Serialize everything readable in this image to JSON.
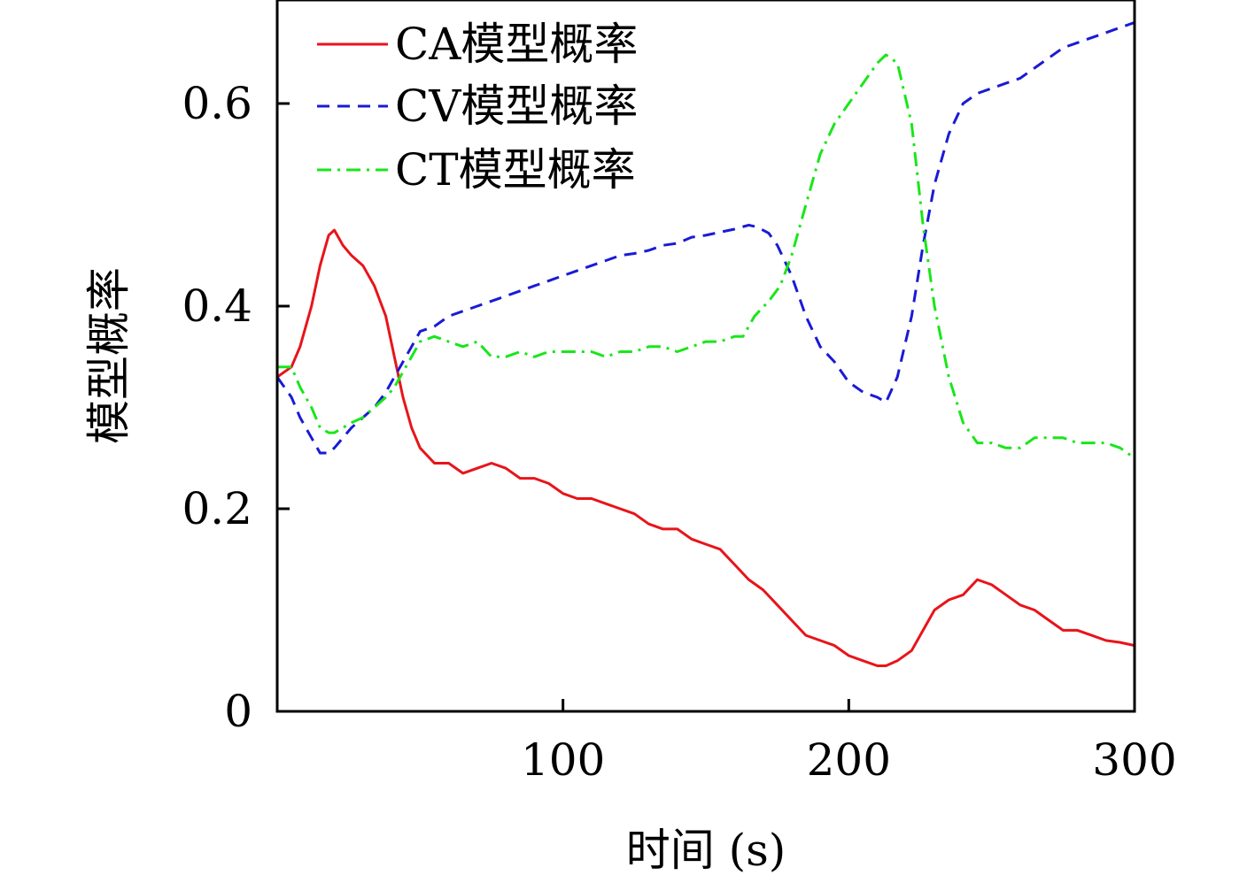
{
  "chart_data": {
    "type": "line",
    "title": "",
    "xlabel": "时间 (s)",
    "ylabel": "模型概率",
    "xlim": [
      0,
      300
    ],
    "ylim": [
      0,
      0.7
    ],
    "xticks": [
      100,
      200,
      300
    ],
    "xtick_labels": [
      "100",
      "200",
      "300"
    ],
    "yticks": [
      0,
      0.2,
      0.4,
      0.6
    ],
    "ytick_labels": [
      "0",
      "0.2",
      "0.4",
      "0.6"
    ],
    "grid": false,
    "legend_position": "top-left",
    "series": [
      {
        "name": "CA模型概率",
        "color": "#e8141a",
        "dash": "solid",
        "x": [
          0,
          5,
          8,
          12,
          15,
          18,
          20,
          23,
          26,
          30,
          34,
          38,
          41,
          44,
          47,
          50,
          55,
          60,
          65,
          70,
          75,
          80,
          85,
          90,
          95,
          100,
          105,
          110,
          115,
          120,
          125,
          130,
          135,
          140,
          145,
          150,
          155,
          160,
          165,
          170,
          175,
          180,
          185,
          190,
          195,
          200,
          205,
          210,
          213,
          217,
          222,
          226,
          230,
          235,
          240,
          245,
          250,
          255,
          260,
          265,
          270,
          275,
          280,
          285,
          290,
          295,
          300
        ],
        "y": [
          0.33,
          0.34,
          0.36,
          0.4,
          0.44,
          0.47,
          0.475,
          0.46,
          0.45,
          0.44,
          0.42,
          0.39,
          0.35,
          0.31,
          0.28,
          0.26,
          0.245,
          0.245,
          0.235,
          0.24,
          0.245,
          0.24,
          0.23,
          0.23,
          0.225,
          0.215,
          0.21,
          0.21,
          0.205,
          0.2,
          0.195,
          0.185,
          0.18,
          0.18,
          0.17,
          0.165,
          0.16,
          0.145,
          0.13,
          0.12,
          0.105,
          0.09,
          0.075,
          0.07,
          0.065,
          0.055,
          0.05,
          0.045,
          0.045,
          0.05,
          0.06,
          0.08,
          0.1,
          0.11,
          0.115,
          0.13,
          0.125,
          0.115,
          0.105,
          0.1,
          0.09,
          0.08,
          0.08,
          0.075,
          0.07,
          0.068,
          0.065
        ]
      },
      {
        "name": "CV模型概率",
        "color": "#1a1ad6",
        "dash": "dashed",
        "x": [
          0,
          5,
          8,
          12,
          15,
          18,
          20,
          23,
          26,
          30,
          34,
          38,
          41,
          44,
          47,
          50,
          55,
          60,
          65,
          70,
          75,
          80,
          85,
          90,
          95,
          100,
          105,
          110,
          115,
          120,
          125,
          130,
          135,
          140,
          145,
          150,
          155,
          160,
          165,
          168,
          172,
          175,
          180,
          185,
          190,
          195,
          200,
          205,
          210,
          213,
          217,
          222,
          226,
          230,
          235,
          240,
          245,
          250,
          255,
          260,
          265,
          270,
          275,
          280,
          285,
          290,
          295,
          300
        ],
        "y": [
          0.33,
          0.31,
          0.29,
          0.27,
          0.255,
          0.255,
          0.26,
          0.27,
          0.28,
          0.29,
          0.3,
          0.315,
          0.33,
          0.345,
          0.36,
          0.375,
          0.38,
          0.39,
          0.395,
          0.4,
          0.405,
          0.41,
          0.415,
          0.42,
          0.425,
          0.43,
          0.435,
          0.44,
          0.445,
          0.45,
          0.452,
          0.455,
          0.46,
          0.462,
          0.468,
          0.47,
          0.473,
          0.476,
          0.48,
          0.478,
          0.472,
          0.46,
          0.43,
          0.39,
          0.36,
          0.345,
          0.325,
          0.315,
          0.31,
          0.305,
          0.33,
          0.39,
          0.46,
          0.52,
          0.57,
          0.6,
          0.61,
          0.615,
          0.62,
          0.625,
          0.635,
          0.645,
          0.655,
          0.66,
          0.665,
          0.67,
          0.675,
          0.68
        ]
      },
      {
        "name": "CT模型概率",
        "color": "#19e619",
        "dash": "dashdot",
        "x": [
          0,
          5,
          8,
          12,
          15,
          18,
          20,
          23,
          26,
          30,
          34,
          38,
          41,
          44,
          47,
          50,
          55,
          60,
          65,
          70,
          75,
          80,
          85,
          90,
          95,
          100,
          105,
          110,
          115,
          120,
          125,
          130,
          135,
          140,
          145,
          150,
          155,
          160,
          163,
          167,
          172,
          176,
          180,
          185,
          190,
          195,
          200,
          205,
          210,
          213,
          217,
          222,
          226,
          230,
          235,
          240,
          245,
          250,
          255,
          260,
          265,
          270,
          275,
          280,
          285,
          290,
          295,
          300
        ],
        "y": [
          0.34,
          0.34,
          0.32,
          0.3,
          0.28,
          0.275,
          0.275,
          0.28,
          0.285,
          0.29,
          0.3,
          0.31,
          0.32,
          0.335,
          0.35,
          0.365,
          0.37,
          0.365,
          0.36,
          0.365,
          0.35,
          0.35,
          0.355,
          0.35,
          0.355,
          0.355,
          0.355,
          0.355,
          0.35,
          0.355,
          0.355,
          0.36,
          0.36,
          0.355,
          0.36,
          0.365,
          0.365,
          0.37,
          0.37,
          0.39,
          0.405,
          0.42,
          0.45,
          0.5,
          0.55,
          0.58,
          0.6,
          0.62,
          0.64,
          0.648,
          0.64,
          0.58,
          0.48,
          0.4,
          0.33,
          0.285,
          0.265,
          0.265,
          0.26,
          0.26,
          0.27,
          0.27,
          0.27,
          0.265,
          0.265,
          0.265,
          0.26,
          0.25
        ]
      }
    ]
  }
}
